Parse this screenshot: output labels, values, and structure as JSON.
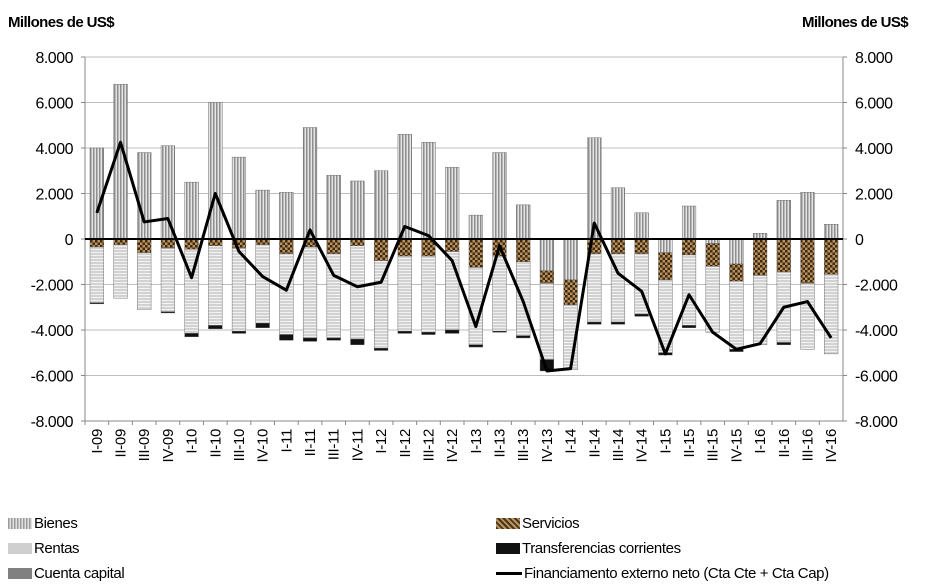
{
  "chart_data": {
    "type": "bar",
    "stacked": true,
    "unit_label_left": "Millones de US$",
    "unit_label_right": "Millones de US$",
    "ylim": [
      -8000,
      8000
    ],
    "yticks": [
      8000,
      6000,
      4000,
      2000,
      0,
      -2000,
      -4000,
      -6000,
      -8000
    ],
    "ytick_labels": [
      "8.000",
      "6.000",
      "4.000",
      "2.000",
      "0",
      "-2.000",
      "-4.000",
      "-6.000",
      "-8.000"
    ],
    "grid": true,
    "legend_position": "bottom",
    "categories": [
      "I-09",
      "II-09",
      "III-09",
      "IV-09",
      "I-10",
      "II-10",
      "III-10",
      "IV-10",
      "I-11",
      "II-11",
      "III-11",
      "IV-11",
      "I-12",
      "II-12",
      "III-12",
      "IV-12",
      "I-13",
      "II-13",
      "III-13",
      "IV-13",
      "I-14",
      "II-14",
      "III-14",
      "IV-14",
      "I-15",
      "II-15",
      "III-15",
      "IV-15",
      "I-16",
      "II-16",
      "III-16",
      "IV-16"
    ],
    "series": [
      {
        "name": "Bienes",
        "kind": "bar",
        "values": [
          4000,
          6800,
          3800,
          4100,
          2500,
          6000,
          3600,
          2150,
          2050,
          4900,
          2800,
          2550,
          3000,
          4600,
          4250,
          3150,
          1050,
          3800,
          1500,
          -1400,
          -1800,
          4450,
          2250,
          1150,
          -600,
          1450,
          -200,
          -1100,
          250,
          1700,
          2050,
          650
        ]
      },
      {
        "name": "Servicios",
        "kind": "bar",
        "values": [
          -350,
          -250,
          -600,
          -400,
          -450,
          -300,
          -400,
          -250,
          -650,
          -350,
          -650,
          -300,
          -950,
          -750,
          -750,
          -550,
          -1250,
          -750,
          -1000,
          -550,
          -1100,
          -650,
          -650,
          -650,
          -1200,
          -700,
          -1000,
          -750,
          -1600,
          -1450,
          -1950,
          -1550
        ]
      },
      {
        "name": "Rentas",
        "kind": "bar",
        "values": [
          -2450,
          -2350,
          -2500,
          -2800,
          -3700,
          -3500,
          -3650,
          -3450,
          -3550,
          -4000,
          -3700,
          -4100,
          -3850,
          -3300,
          -3350,
          -3450,
          -3400,
          -3300,
          -3250,
          -3350,
          -2850,
          -3000,
          -3000,
          -2650,
          -3200,
          -3100,
          -2900,
          -3000,
          -3050,
          -3100,
          -2900,
          -3500
        ]
      },
      {
        "name": "Transferencias corrientes",
        "kind": "bar",
        "values": [
          -50,
          0,
          0,
          -50,
          -150,
          -150,
          -100,
          -200,
          -250,
          -150,
          -100,
          -250,
          -100,
          -100,
          -100,
          -150,
          -100,
          -50,
          -100,
          -500,
          0,
          -100,
          -100,
          -100,
          -100,
          -100,
          0,
          -100,
          0,
          -100,
          0,
          0
        ]
      },
      {
        "name": "Cuenta capital",
        "kind": "bar",
        "values": [
          0,
          0,
          0,
          0,
          0,
          0,
          0,
          0,
          0,
          0,
          0,
          0,
          0,
          0,
          0,
          0,
          0,
          0,
          0,
          0,
          0,
          0,
          0,
          0,
          0,
          0,
          0,
          0,
          0,
          0,
          0,
          0
        ]
      },
      {
        "name": "Financiamento externo neto (Cta Cte + Cta Cap)",
        "kind": "line",
        "values": [
          1150,
          4250,
          750,
          900,
          -1700,
          2000,
          -550,
          -1650,
          -2250,
          400,
          -1600,
          -2100,
          -1900,
          550,
          150,
          -950,
          -3850,
          -300,
          -2750,
          -5800,
          -5700,
          700,
          -1500,
          -2300,
          -5050,
          -2450,
          -4100,
          -4850,
          -4600,
          -3000,
          -2750,
          -4350
        ]
      }
    ]
  }
}
